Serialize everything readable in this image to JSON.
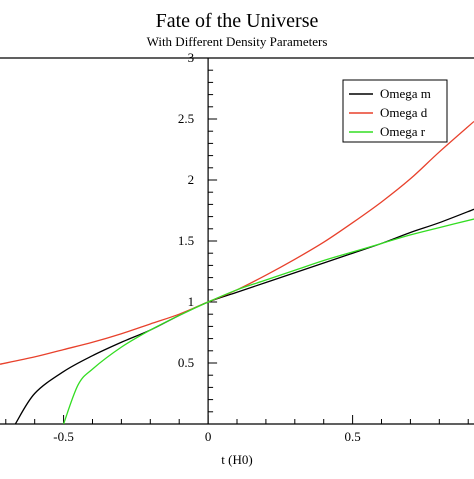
{
  "chart_data": {
    "type": "line",
    "title": "Fate of the Universe",
    "subtitle": "With Different Density Parameters",
    "xlabel": "t (H0)",
    "ylabel": "",
    "xlim": [
      -0.72,
      0.92
    ],
    "ylim": [
      0,
      3
    ],
    "x_ticks": [
      {
        "value": -0.5,
        "label": "-0.5"
      },
      {
        "value": 0,
        "label": "0"
      },
      {
        "value": 0.5,
        "label": "0.5"
      }
    ],
    "y_ticks": [
      {
        "value": 0.5,
        "label": "0.5"
      },
      {
        "value": 1,
        "label": "1"
      },
      {
        "value": 1.5,
        "label": "1.5"
      },
      {
        "value": 2,
        "label": "2"
      },
      {
        "value": 2.5,
        "label": "2.5"
      },
      {
        "value": 3,
        "label": "3"
      }
    ],
    "grid": false,
    "legend_position": "top-right",
    "series": [
      {
        "name": "Omega m",
        "color": "#000000",
        "x": [
          -0.667,
          -0.6,
          -0.5,
          -0.4,
          -0.3,
          -0.2,
          -0.1,
          0,
          0.1,
          0.2,
          0.3,
          0.4,
          0.5,
          0.6,
          0.7,
          0.8,
          0.92
        ],
        "y": [
          0,
          0.25,
          0.43,
          0.56,
          0.67,
          0.77,
          0.89,
          1.0,
          1.08,
          1.16,
          1.24,
          1.32,
          1.4,
          1.48,
          1.57,
          1.65,
          1.76
        ]
      },
      {
        "name": "Omega d",
        "color": "#e8412c",
        "x": [
          -0.72,
          -0.6,
          -0.5,
          -0.4,
          -0.3,
          -0.2,
          -0.1,
          0,
          0.1,
          0.2,
          0.3,
          0.4,
          0.5,
          0.6,
          0.7,
          0.8,
          0.92
        ],
        "y": [
          0.49,
          0.55,
          0.61,
          0.67,
          0.74,
          0.82,
          0.9,
          1.0,
          1.1,
          1.22,
          1.35,
          1.49,
          1.65,
          1.82,
          2.01,
          2.23,
          2.48
        ]
      },
      {
        "name": "Omega r",
        "color": "#33dd22",
        "x": [
          -0.5,
          -0.45,
          -0.4,
          -0.3,
          -0.2,
          -0.1,
          0,
          0.1,
          0.2,
          0.3,
          0.4,
          0.5,
          0.6,
          0.7,
          0.8,
          0.92
        ],
        "y": [
          0,
          0.32,
          0.45,
          0.63,
          0.77,
          0.89,
          1.0,
          1.1,
          1.18,
          1.26,
          1.34,
          1.41,
          1.48,
          1.55,
          1.61,
          1.68
        ]
      }
    ]
  }
}
